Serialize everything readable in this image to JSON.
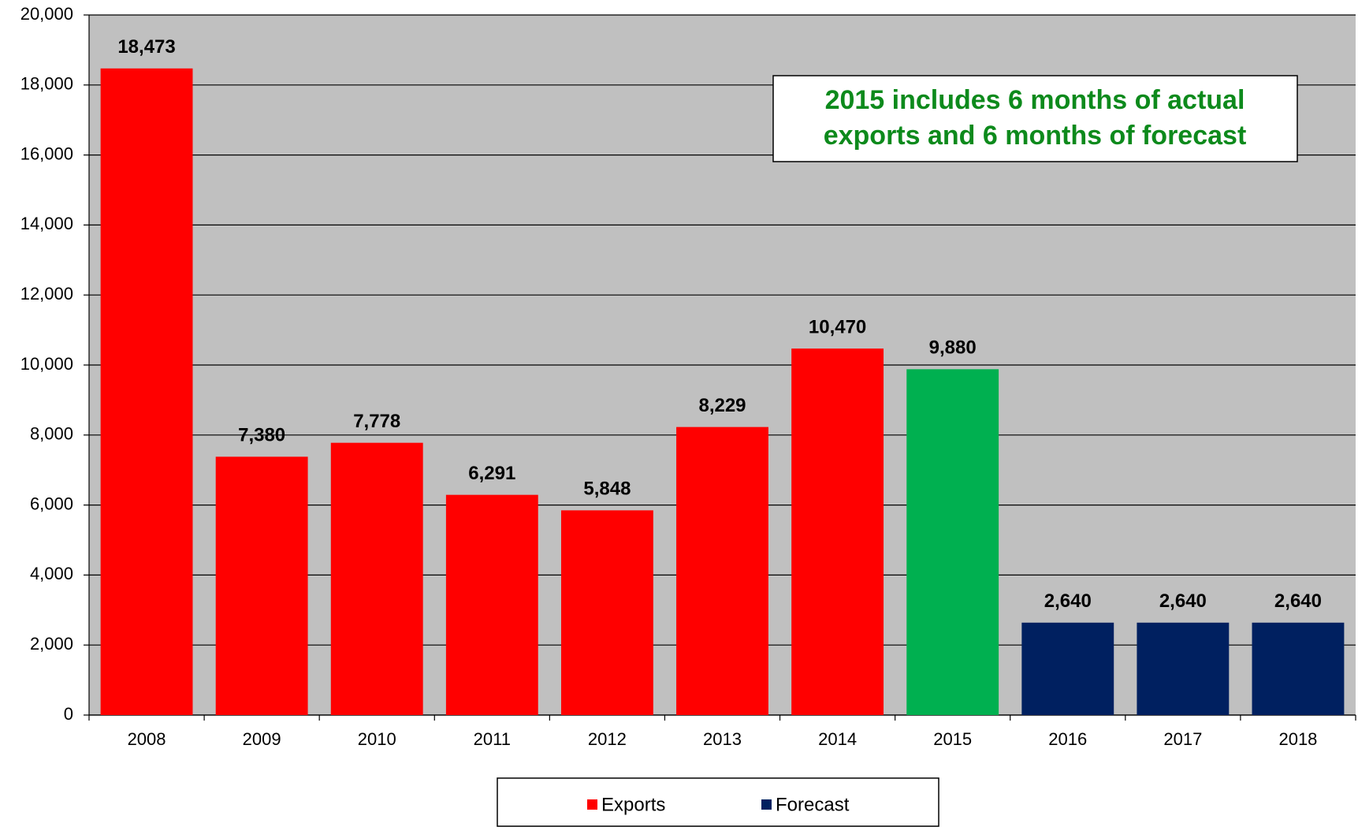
{
  "chart_data": {
    "type": "bar",
    "categories": [
      "2008",
      "2009",
      "2010",
      "2011",
      "2012",
      "2013",
      "2014",
      "2015",
      "2016",
      "2017",
      "2018"
    ],
    "series": [
      {
        "name": "Exports",
        "color": "#ff0000",
        "point_colors": [
          "#ff0000",
          "#ff0000",
          "#ff0000",
          "#ff0000",
          "#ff0000",
          "#ff0000",
          "#ff0000",
          "#00b050",
          null,
          null,
          null
        ],
        "values": [
          18473,
          7380,
          7778,
          6291,
          5848,
          8229,
          10470,
          9880,
          null,
          null,
          null
        ],
        "value_labels": [
          "18,473",
          "7,380",
          "7,778",
          "6,291",
          "5,848",
          "8,229",
          "10,470",
          "9,880",
          null,
          null,
          null
        ]
      },
      {
        "name": "Forecast",
        "color": "#002060",
        "values": [
          null,
          null,
          null,
          null,
          null,
          null,
          null,
          null,
          2640,
          2640,
          2640
        ],
        "value_labels": [
          null,
          null,
          null,
          null,
          null,
          null,
          null,
          null,
          "2,640",
          "2,640",
          "2,640"
        ]
      }
    ],
    "ylim": [
      0,
      20000
    ],
    "yticks": [
      0,
      {
        "value": 2000,
        "label": "2,000"
      },
      {
        "value": 4000,
        "label": "4,000"
      },
      {
        "value": 6000,
        "label": "6,000"
      },
      {
        "value": 8000,
        "label": "8,000"
      },
      {
        "value": 10000,
        "label": "10,000"
      },
      {
        "value": 12000,
        "label": "12,000"
      },
      {
        "value": 14000,
        "label": "14,000"
      },
      {
        "value": 16000,
        "label": "16,000"
      },
      {
        "value": 18000,
        "label": "18,000"
      },
      {
        "value": 20000,
        "label": "20,000"
      }
    ],
    "grid": true,
    "annotation": [
      "2015 includes 6 months of actual",
      "exports and 6 months of forecast"
    ],
    "legend": "bottom"
  }
}
